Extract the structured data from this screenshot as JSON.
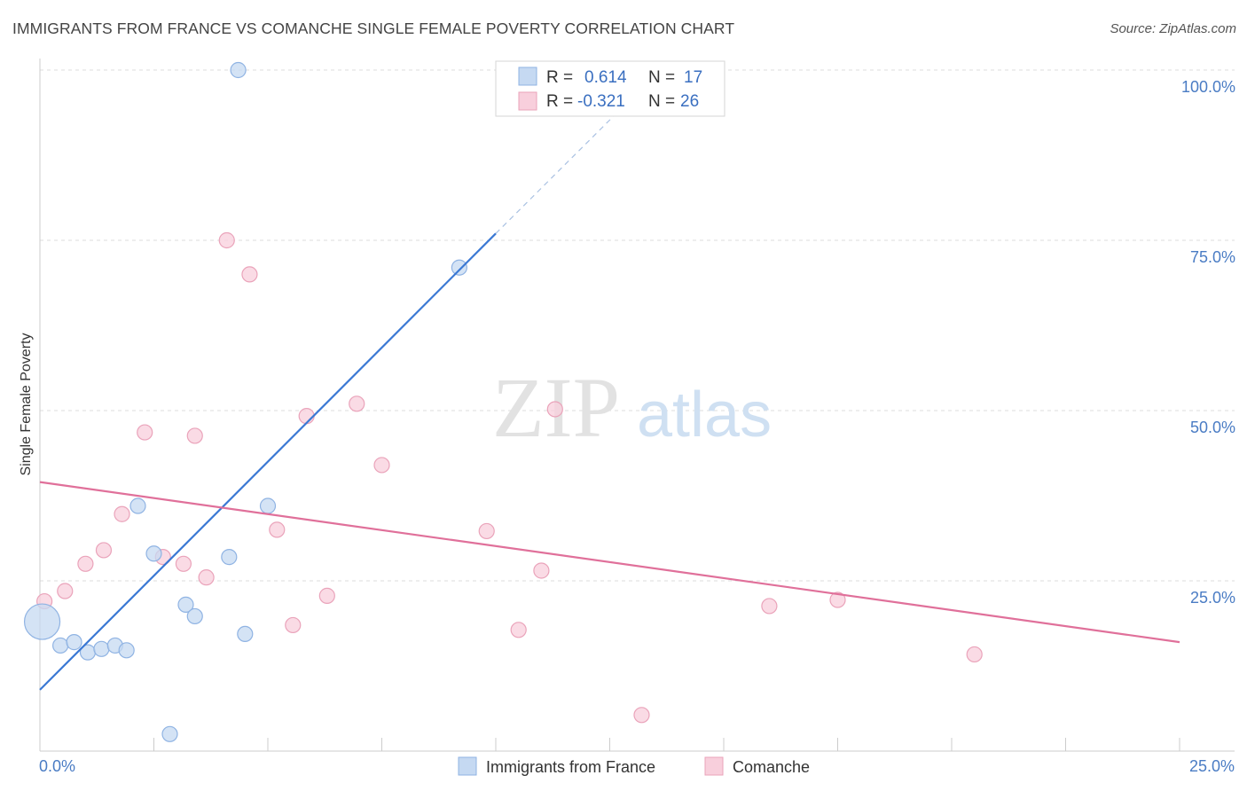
{
  "header": {
    "title": "IMMIGRANTS FROM FRANCE VS COMANCHE SINGLE FEMALE POVERTY CORRELATION CHART",
    "source": "Source: ZipAtlas.com"
  },
  "watermark": {
    "zip": "ZIP",
    "atlas": "atlas"
  },
  "legend_box": {
    "rows": [
      {
        "r_label": "R = ",
        "r_value": "0.614",
        "n_label": "N = ",
        "n_value": "17",
        "color": "#a9c8ef"
      },
      {
        "r_label": "R = ",
        "r_value": "-0.321",
        "n_label": "N = ",
        "n_value": "26",
        "color": "#f5b8c9"
      }
    ]
  },
  "colors": {
    "blue_fill": "#c5d9f2",
    "blue_stroke": "#8fb3e3",
    "blue_line": "#3a78d4",
    "pink_fill": "#f8cfdc",
    "pink_stroke": "#eaa3ba",
    "pink_line": "#e0709a",
    "grid": "#dddddd",
    "axis_label": "#4a7cc4"
  },
  "chart_data": {
    "type": "scatter",
    "ylabel": "Single Female Poverty",
    "xlim": [
      0,
      25
    ],
    "ylim": [
      0,
      100
    ],
    "x_tick_labels": [
      "0.0%",
      "25.0%"
    ],
    "y_ticks": [
      {
        "value": 25,
        "label": "25.0%"
      },
      {
        "value": 50,
        "label": "50.0%"
      },
      {
        "value": 75,
        "label": "75.0%"
      },
      {
        "value": 100,
        "label": "100.0%"
      }
    ],
    "grid": true,
    "series": [
      {
        "name": "Immigrants from France",
        "color": "#a9c8ef",
        "points": [
          {
            "x": 0.05,
            "y": 19,
            "big": true
          },
          {
            "x": 0.45,
            "y": 15.5
          },
          {
            "x": 0.75,
            "y": 16
          },
          {
            "x": 1.05,
            "y": 14.5
          },
          {
            "x": 1.35,
            "y": 15
          },
          {
            "x": 1.65,
            "y": 15.5
          },
          {
            "x": 1.9,
            "y": 14.8
          },
          {
            "x": 2.15,
            "y": 36
          },
          {
            "x": 2.5,
            "y": 29
          },
          {
            "x": 2.85,
            "y": 2.5
          },
          {
            "x": 3.2,
            "y": 21.5
          },
          {
            "x": 3.4,
            "y": 19.8
          },
          {
            "x": 4.15,
            "y": 28.5
          },
          {
            "x": 4.35,
            "y": 100
          },
          {
            "x": 4.5,
            "y": 17.2
          },
          {
            "x": 5.0,
            "y": 36
          },
          {
            "x": 9.2,
            "y": 71
          }
        ],
        "trend": {
          "x1": 0,
          "y1": 9,
          "x2": 10,
          "y2": 76,
          "dash_to_x": 13,
          "dash_to_y": 96
        }
      },
      {
        "name": "Comanche",
        "color": "#f5b8c9",
        "points": [
          {
            "x": 0.1,
            "y": 22
          },
          {
            "x": 0.55,
            "y": 23.5
          },
          {
            "x": 1.0,
            "y": 27.5
          },
          {
            "x": 1.4,
            "y": 29.5
          },
          {
            "x": 1.8,
            "y": 34.8
          },
          {
            "x": 2.3,
            "y": 46.8
          },
          {
            "x": 2.7,
            "y": 28.5
          },
          {
            "x": 3.15,
            "y": 27.5
          },
          {
            "x": 3.4,
            "y": 46.3
          },
          {
            "x": 3.65,
            "y": 25.5
          },
          {
            "x": 4.1,
            "y": 75
          },
          {
            "x": 4.6,
            "y": 70
          },
          {
            "x": 5.2,
            "y": 32.5
          },
          {
            "x": 5.55,
            "y": 18.5
          },
          {
            "x": 5.85,
            "y": 49.2
          },
          {
            "x": 6.3,
            "y": 22.8
          },
          {
            "x": 6.95,
            "y": 51
          },
          {
            "x": 7.5,
            "y": 42
          },
          {
            "x": 9.8,
            "y": 32.3
          },
          {
            "x": 10.5,
            "y": 17.8
          },
          {
            "x": 11.0,
            "y": 26.5
          },
          {
            "x": 11.3,
            "y": 50.2
          },
          {
            "x": 13.2,
            "y": 5.3
          },
          {
            "x": 16.0,
            "y": 21.3
          },
          {
            "x": 17.5,
            "y": 22.2
          },
          {
            "x": 20.5,
            "y": 14.2
          }
        ],
        "trend": {
          "x1": 0,
          "y1": 39.5,
          "x2": 25,
          "y2": 16
        }
      }
    ]
  }
}
